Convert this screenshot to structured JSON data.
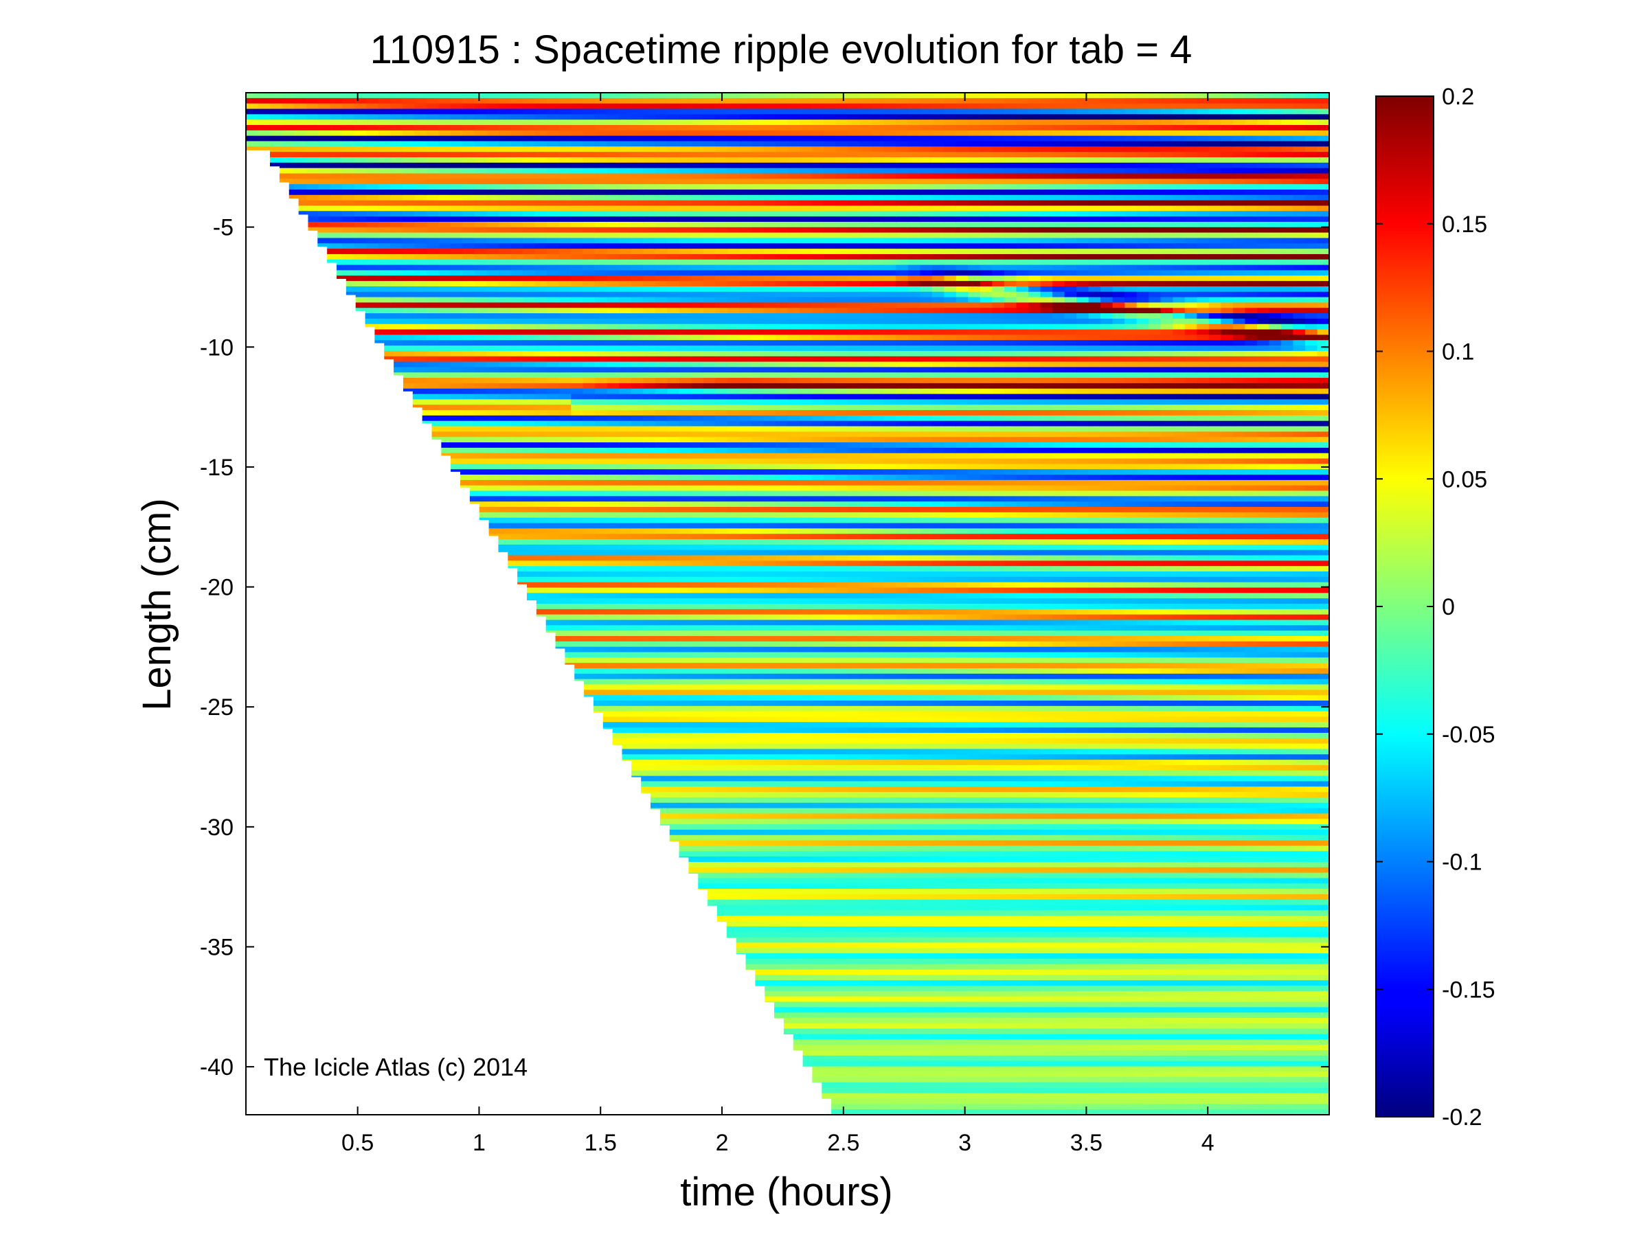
{
  "chart_data": {
    "type": "heatmap",
    "title": "110915 : Spacetime ripple evolution for tab = 4",
    "xlabel": "time (hours)",
    "ylabel": "Length (cm)",
    "xlim": [
      0.04,
      4.5
    ],
    "ylim": [
      -42,
      0.6
    ],
    "x_ticks": [
      0.5,
      1,
      1.5,
      2,
      2.5,
      3,
      3.5,
      4
    ],
    "x_tick_labels": [
      "0.5",
      "1",
      "1.5",
      "2",
      "2.5",
      "3",
      "3.5",
      "4"
    ],
    "y_ticks": [
      -5,
      -10,
      -15,
      -20,
      -25,
      -30,
      -35,
      -40
    ],
    "y_tick_labels": [
      "-5",
      "-10",
      "-15",
      "-20",
      "-25",
      "-30",
      "-35",
      "-40"
    ],
    "colormap": "jet",
    "clim": [
      -0.2,
      0.2
    ],
    "colorbar_ticks": [
      0.2,
      0.15,
      0.1,
      0.05,
      0,
      -0.05,
      -0.1,
      -0.15,
      -0.2
    ],
    "colorbar_tick_labels": [
      "0.2",
      "0.15",
      "0.1",
      "0.05",
      "0",
      "-0.05",
      "-0.1",
      "-0.15",
      "-0.2"
    ],
    "colorbar_position": "right",
    "grid": false,
    "data_boundary": {
      "description_free_points": [
        [
          0.04,
          0.6
        ],
        [
          0.1,
          -1.8
        ],
        [
          2.45,
          -42
        ]
      ]
    },
    "annotation": "The Icicle Atlas (c) 2014"
  }
}
